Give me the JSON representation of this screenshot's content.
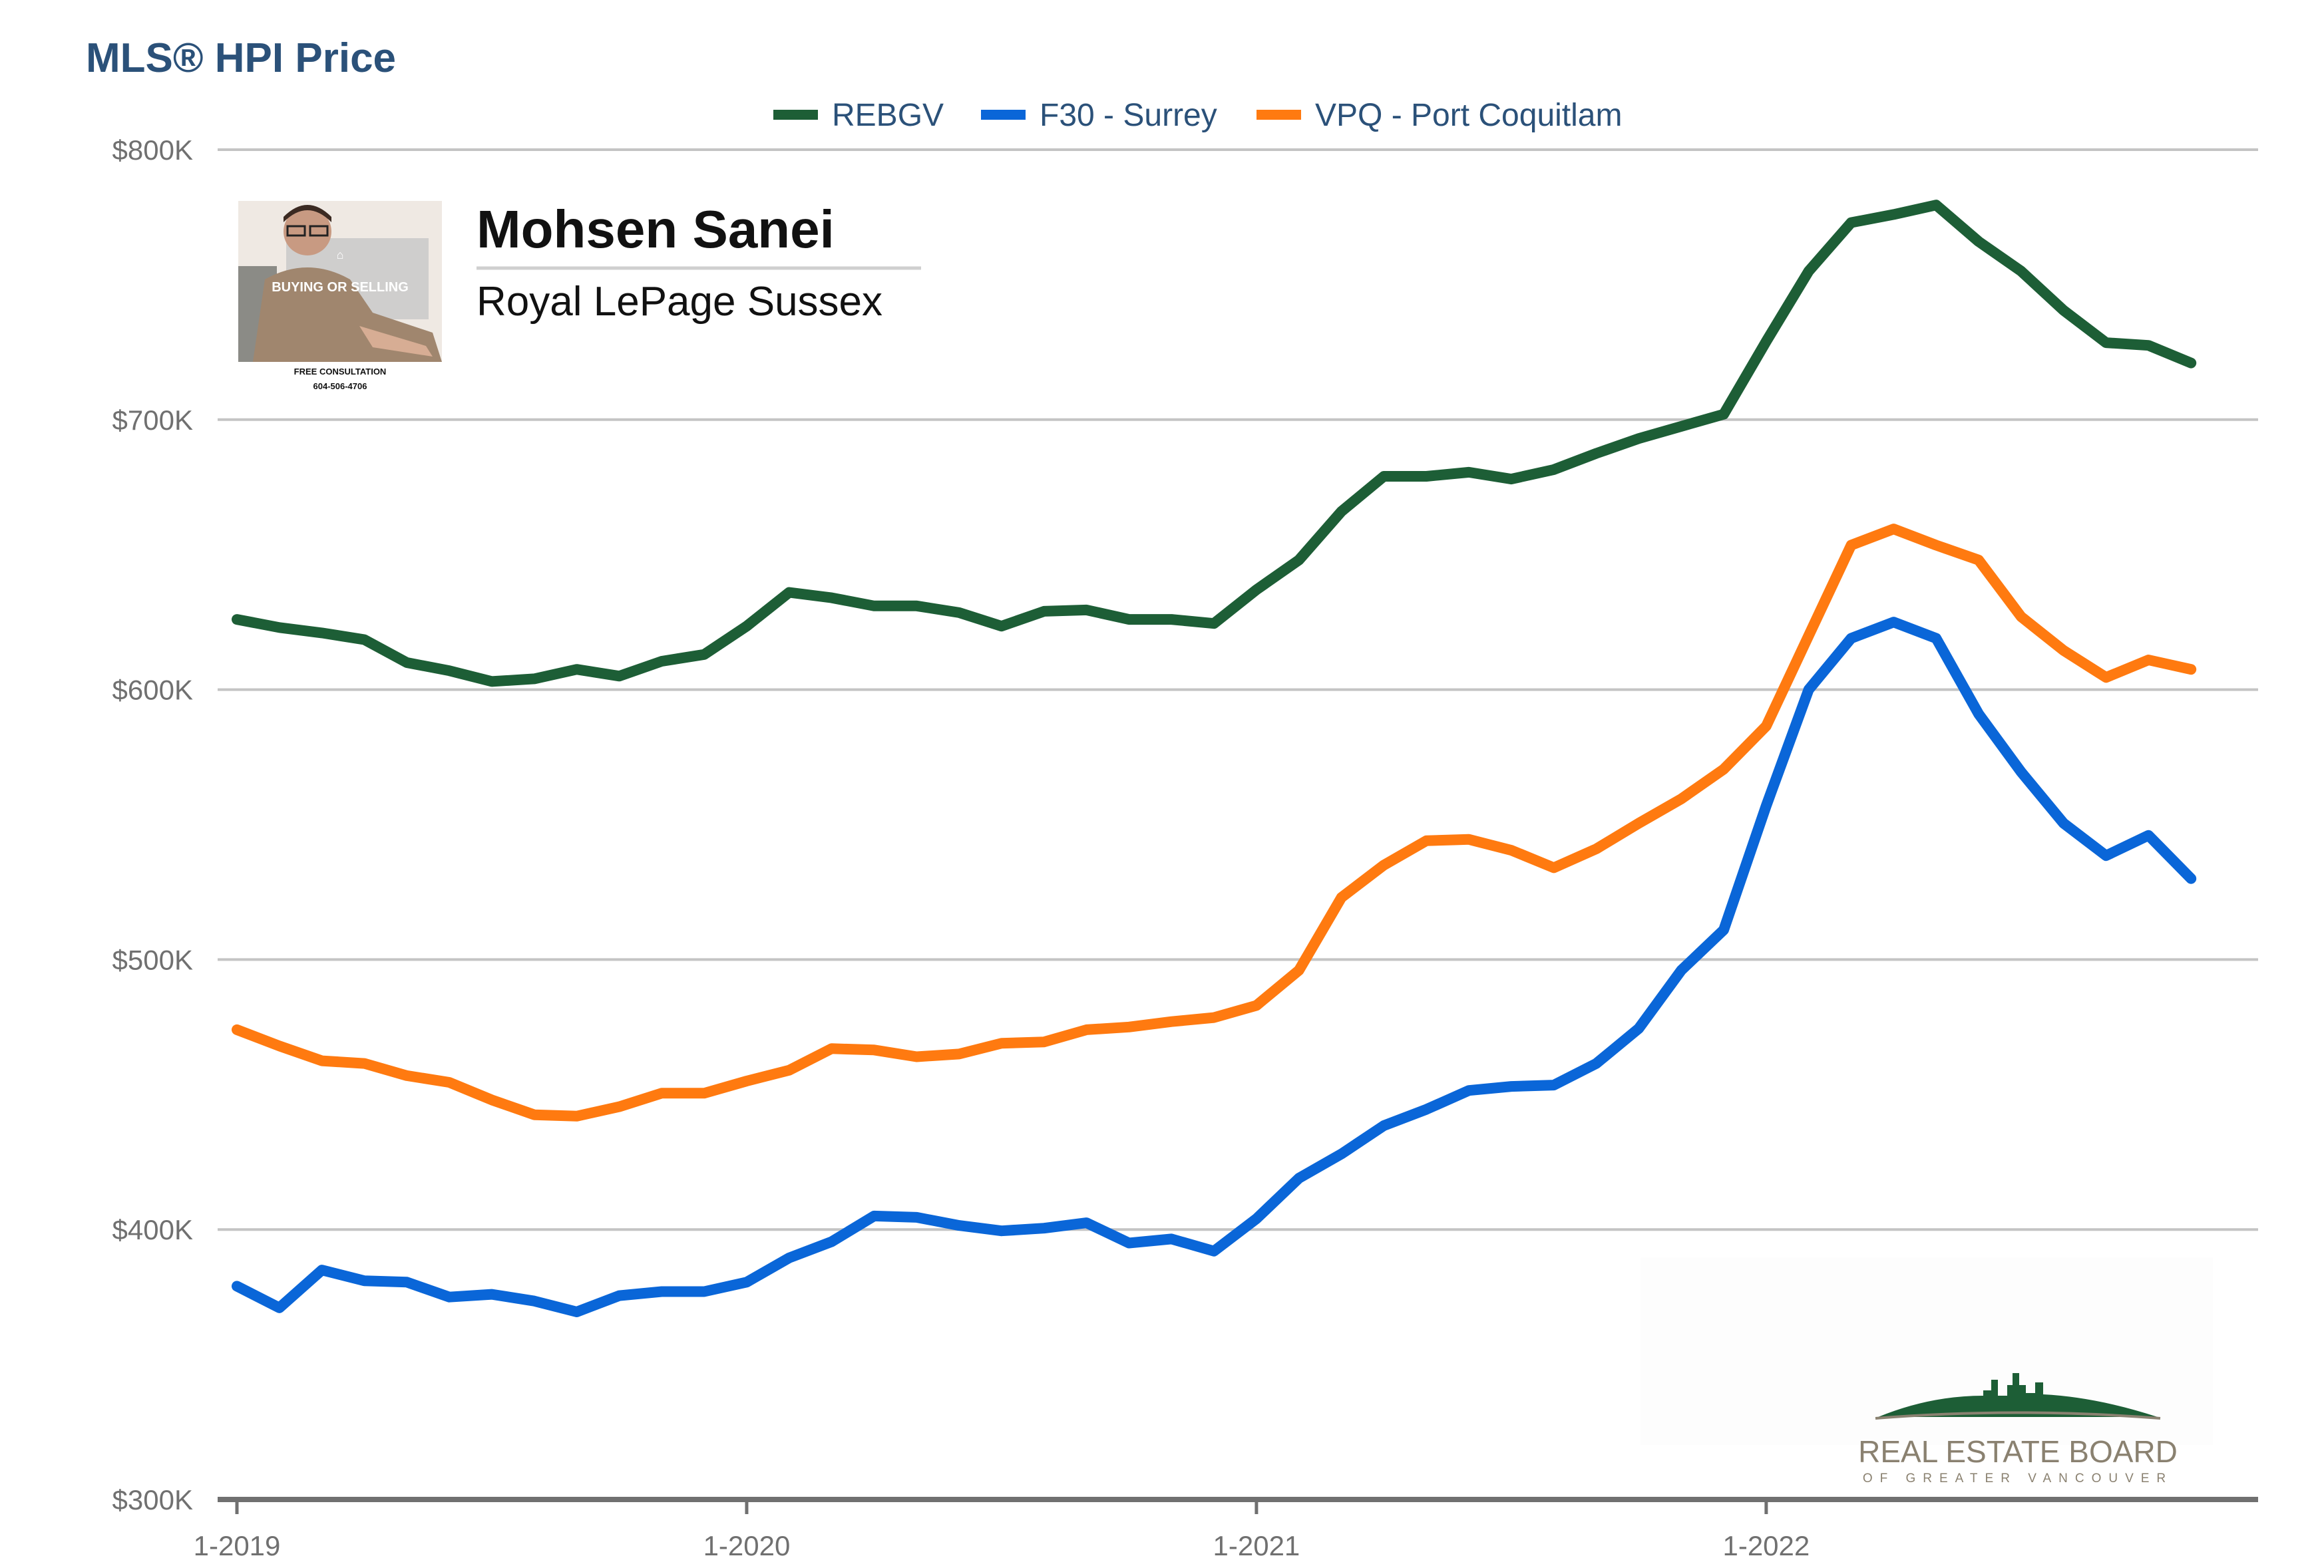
{
  "chart_data": {
    "type": "line",
    "title": "MLS® HPI Price",
    "xlabel": "",
    "ylabel": "",
    "ylim": [
      300000,
      800000
    ],
    "yticks": [
      800000,
      700000,
      600000,
      500000,
      400000,
      300000
    ],
    "ytick_labels": [
      "$800K",
      "$700K",
      "$600K",
      "$500K",
      "$400K",
      "$300K"
    ],
    "xticks": [
      "2019-01",
      "2020-01",
      "2021-01",
      "2022-01"
    ],
    "xtick_labels": [
      "1-2019",
      "1-2020",
      "1-2021",
      "1-2022"
    ],
    "x": [
      "2019-01",
      "2019-02",
      "2019-03",
      "2019-04",
      "2019-05",
      "2019-06",
      "2019-07",
      "2019-08",
      "2019-09",
      "2019-10",
      "2019-11",
      "2019-12",
      "2020-01",
      "2020-02",
      "2020-03",
      "2020-04",
      "2020-05",
      "2020-06",
      "2020-07",
      "2020-08",
      "2020-09",
      "2020-10",
      "2020-11",
      "2020-12",
      "2021-01",
      "2021-02",
      "2021-03",
      "2021-04",
      "2021-05",
      "2021-06",
      "2021-07",
      "2021-08",
      "2021-09",
      "2021-10",
      "2021-11",
      "2021-12",
      "2022-01",
      "2022-02",
      "2022-03",
      "2022-04",
      "2022-05",
      "2022-06",
      "2022-07",
      "2022-08",
      "2022-09",
      "2022-10",
      "2022-11",
      "2022-12"
    ],
    "legend_position": "top-center",
    "grid": true,
    "series": [
      {
        "name": "REBGV",
        "color": "#1d5e36",
        "values": [
          626000,
          623000,
          621000,
          618500,
          610000,
          607000,
          603000,
          604000,
          607500,
          605000,
          610500,
          613000,
          623500,
          636000,
          634000,
          631000,
          631000,
          628500,
          623500,
          629000,
          629500,
          626000,
          626000,
          624500,
          637000,
          648000,
          666000,
          679000,
          679000,
          680500,
          678000,
          681500,
          687500,
          693000,
          697500,
          702000,
          729000,
          755000,
          773000,
          776000,
          779500,
          766000,
          755000,
          740500,
          728500,
          727500,
          721000,
          null
        ]
      },
      {
        "name": "F30 - Surrey",
        "color": "#0a66d8",
        "values": [
          379000,
          371000,
          385000,
          381000,
          380500,
          375000,
          376000,
          373500,
          369500,
          375500,
          377000,
          377000,
          380500,
          389500,
          395500,
          405000,
          404500,
          401500,
          399500,
          400500,
          402500,
          395000,
          396500,
          392000,
          404000,
          419000,
          428000,
          438500,
          444500,
          451500,
          453000,
          453500,
          461500,
          474500,
          496000,
          511000,
          557000,
          600000,
          619000,
          625000,
          619000,
          591000,
          569500,
          550500,
          538500,
          546000,
          530000,
          null
        ]
      },
      {
        "name": "VPQ - Port Coquitlam",
        "color": "#ff7a10",
        "values": [
          474000,
          468000,
          462500,
          461500,
          457000,
          454500,
          448000,
          442500,
          442000,
          445500,
          450500,
          450500,
          455000,
          459000,
          467000,
          466500,
          464000,
          465000,
          469000,
          469500,
          474000,
          475000,
          477000,
          478500,
          483000,
          496000,
          523000,
          535000,
          544000,
          544500,
          540500,
          534000,
          541000,
          550500,
          559500,
          570500,
          586500,
          620000,
          653500,
          659500,
          653500,
          648000,
          627000,
          614500,
          604500,
          611000,
          607500,
          null
        ]
      }
    ]
  },
  "agent": {
    "name": "Mohsen Sanei",
    "brokerage": "Royal LePage Sussex",
    "photo_caption": "BUYING OR SELLING",
    "consult_label": "FREE CONSULTATION",
    "phone": "604-506-4706"
  },
  "board_logo": {
    "line1": "REAL ESTATE BOARD",
    "line2": "OF GREATER VANCOUVER",
    "color": "#1d5e36"
  }
}
